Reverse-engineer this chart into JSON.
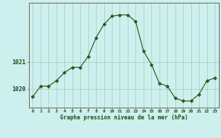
{
  "x": [
    0,
    1,
    2,
    3,
    4,
    5,
    6,
    7,
    8,
    9,
    10,
    11,
    12,
    13,
    14,
    15,
    16,
    17,
    18,
    19,
    20,
    21,
    22,
    23
  ],
  "y": [
    1019.7,
    1020.1,
    1020.1,
    1020.3,
    1020.6,
    1020.8,
    1020.8,
    1021.2,
    1021.9,
    1022.4,
    1022.7,
    1022.75,
    1022.75,
    1022.5,
    1021.4,
    1020.9,
    1020.2,
    1020.1,
    1019.65,
    1019.55,
    1019.55,
    1019.8,
    1020.3,
    1020.4
  ],
  "line_color": "#2d5a1b",
  "marker": "D",
  "marker_size": 2.5,
  "bg_color": "#cdf0ee",
  "grid_color": "#99ccbb",
  "xlabel": "Graphe pression niveau de la mer (hPa)",
  "xlabel_color": "#1a4a1a",
  "tick_color": "#1a4a1a",
  "yticks": [
    1020,
    1021
  ],
  "ylim": [
    1019.3,
    1023.2
  ],
  "xlim": [
    -0.5,
    23.5
  ],
  "figsize": [
    3.2,
    2.0
  ],
  "dpi": 100
}
